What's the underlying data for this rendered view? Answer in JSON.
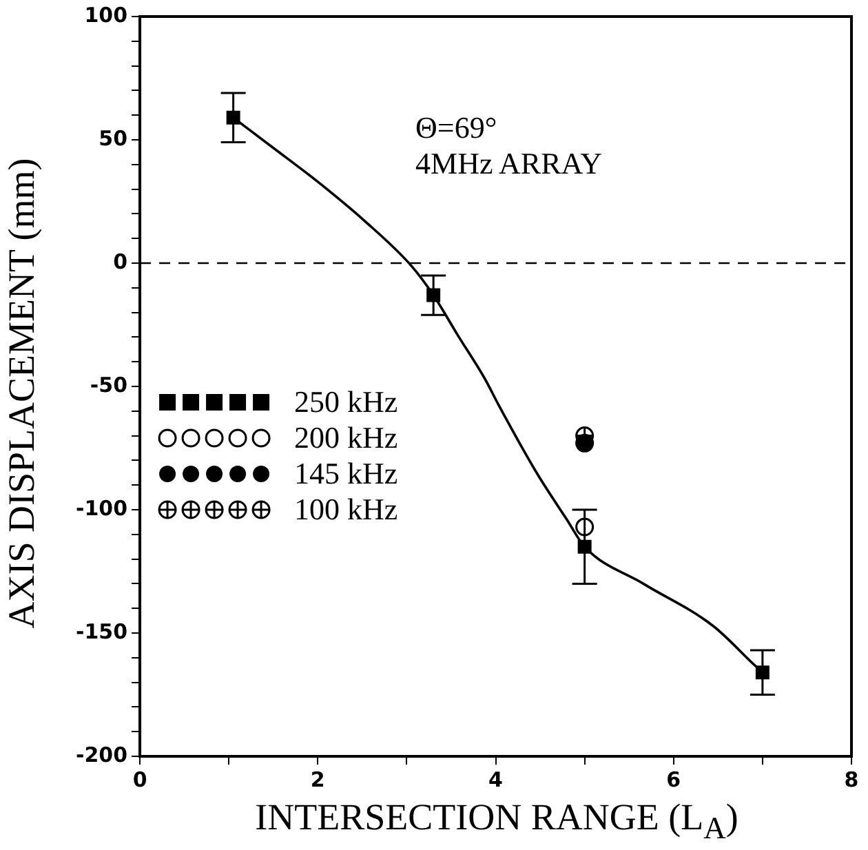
{
  "chart_data": {
    "type": "scatter",
    "xlabel": "INTERSECTION RANGE (L$_{A}$)",
    "ylabel": "AXIS DISPLACEMENT (mm)",
    "xlim": [
      0,
      8
    ],
    "xticks": [
      0,
      {
        "value": 1,
        "label": null
      },
      2,
      {
        "value": 3,
        "label": null
      },
      4,
      {
        "value": 5,
        "label": null
      },
      6,
      {
        "value": 7,
        "label": null
      },
      8
    ],
    "ylim": [
      -200,
      100
    ],
    "yticks": [
      -200,
      {
        "value": -190,
        "label": null
      },
      {
        "value": -180,
        "label": null
      },
      {
        "value": -170,
        "label": null
      },
      {
        "value": -160,
        "label": null
      },
      -150,
      {
        "value": -140,
        "label": null
      },
      {
        "value": -130,
        "label": null
      },
      {
        "value": -120,
        "label": null
      },
      {
        "value": -110,
        "label": null
      },
      -100,
      {
        "value": -90,
        "label": null
      },
      {
        "value": -80,
        "label": null
      },
      {
        "value": -70,
        "label": null
      },
      {
        "value": -60,
        "label": null
      },
      -50,
      {
        "value": -40,
        "label": null
      },
      {
        "value": -30,
        "label": null
      },
      {
        "value": -20,
        "label": null
      },
      {
        "value": -10,
        "label": null
      },
      0,
      {
        "value": 10,
        "label": null
      },
      {
        "value": 20,
        "label": null
      },
      {
        "value": 30,
        "label": null
      },
      {
        "value": 40,
        "label": null
      },
      50,
      {
        "value": 60,
        "label": null
      },
      {
        "value": 70,
        "label": null
      },
      {
        "value": 80,
        "label": null
      },
      {
        "value": 90,
        "label": null
      },
      100
    ],
    "grid": false,
    "legend": "left",
    "annotations": [
      "Θ=69°",
      "4MHz ARRAY"
    ],
    "ref_lines": [
      {
        "axis": "y",
        "value": 0,
        "line_style": "dashed",
        "color": "#000000"
      }
    ],
    "series": [
      {
        "name": "250 kHz",
        "color": "#000000",
        "marker": "square",
        "x": [
          1.05,
          3.3,
          5,
          7
        ],
        "values": [
          59,
          -13,
          -115,
          -166
        ],
        "errors": [
          10,
          8,
          15,
          9
        ]
      },
      {
        "name": "200 kHz",
        "color": "#000000",
        "marker": "circle",
        "x": [
          5
        ],
        "values": [
          -107
        ]
      },
      {
        "name": "145 kHz",
        "color": "#000000",
        "marker": "circle",
        "x": [
          5
        ],
        "values": [
          -73
        ]
      },
      {
        "name": "100 kHz",
        "color": "#000000",
        "marker": "circle",
        "x": [
          5
        ],
        "values": [
          -70
        ]
      },
      {
        "type": "line",
        "color": "#000000",
        "marker": "none",
        "line_style": "solid",
        "x": [
          1.05,
          1.49,
          2.0,
          2.53,
          3.05,
          3.3,
          3.57,
          3.88,
          4.04,
          4.46,
          4.8,
          5,
          5.66,
          6.44,
          6.91,
          7
        ],
        "values": [
          59,
          47,
          33,
          17,
          -1,
          -13,
          -29,
          -47,
          -58,
          -85,
          -104,
          -115,
          -130,
          -147,
          -163,
          -166
        ]
      }
    ]
  }
}
